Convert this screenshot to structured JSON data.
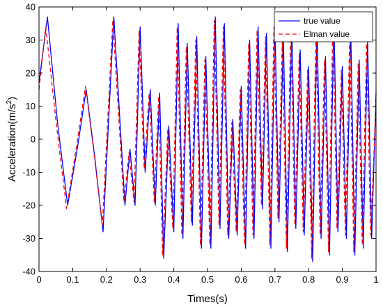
{
  "chart_data": {
    "type": "line",
    "title": "",
    "xlabel": "Times(s)",
    "ylabel_main": "Acceleration(m/s",
    "ylabel_sup": "2",
    "ylabel_close": ")",
    "xlim": [
      0,
      1
    ],
    "ylim": [
      -40,
      40
    ],
    "xticks": [
      0,
      0.1,
      0.2,
      0.3,
      0.4,
      0.5,
      0.6,
      0.7,
      0.8,
      0.9,
      1
    ],
    "xtick_labels": [
      "0",
      "0.1",
      "0.2",
      "0.3",
      "0.4",
      "0.5",
      "0.6",
      "0.7",
      "0.8",
      "0.9",
      "1"
    ],
    "yticks": [
      -40,
      -30,
      -20,
      -10,
      0,
      10,
      20,
      30,
      40
    ],
    "ytick_labels": [
      "-40",
      "-30",
      "-20",
      "-10",
      "0",
      "10",
      "20",
      "30",
      "40"
    ],
    "grid": false,
    "legend_position": "top-right",
    "series": [
      {
        "name": "true value",
        "color": "#0000ff",
        "style": "solid",
        "x": [
          0,
          0.025,
          0.055,
          0.085,
          0.115,
          0.14,
          0.165,
          0.19,
          0.222,
          0.255,
          0.27,
          0.285,
          0.3,
          0.315,
          0.33,
          0.345,
          0.358,
          0.37,
          0.385,
          0.4,
          0.413,
          0.427,
          0.44,
          0.455,
          0.468,
          0.482,
          0.495,
          0.51,
          0.523,
          0.537,
          0.55,
          0.563,
          0.575,
          0.588,
          0.6,
          0.613,
          0.625,
          0.638,
          0.65,
          0.663,
          0.675,
          0.688,
          0.7,
          0.712,
          0.725,
          0.737,
          0.75,
          0.762,
          0.775,
          0.787,
          0.8,
          0.812,
          0.825,
          0.837,
          0.85,
          0.862,
          0.875,
          0.887,
          0.9,
          0.912,
          0.925,
          0.937,
          0.95,
          0.962,
          0.975,
          0.987,
          1
        ],
        "y": [
          17,
          37,
          5,
          -20,
          -2,
          15,
          -5,
          -28,
          37,
          -20,
          -3,
          -20,
          34,
          -10,
          15,
          -20,
          14,
          -36,
          4,
          -28,
          35,
          -30,
          29,
          -26,
          31,
          -33,
          25,
          -33,
          37,
          -27,
          35,
          -30,
          6,
          -29,
          16,
          -33,
          30,
          -30,
          34,
          -21,
          32,
          -33,
          35,
          -25,
          32,
          -34,
          35,
          -27,
          27,
          -29,
          22,
          -37,
          35,
          -30,
          25,
          -35,
          37,
          -28,
          22,
          -30,
          33,
          -35,
          24,
          -33,
          30,
          -30,
          14
        ]
      },
      {
        "name": "Elman value",
        "color": "#ff0000",
        "style": "dashed",
        "x": [
          0,
          0.02,
          0.052,
          0.082,
          0.113,
          0.138,
          0.163,
          0.188,
          0.219,
          0.252,
          0.267,
          0.282,
          0.297,
          0.312,
          0.327,
          0.342,
          0.355,
          0.367,
          0.382,
          0.397,
          0.41,
          0.424,
          0.437,
          0.452,
          0.465,
          0.479,
          0.492,
          0.507,
          0.52,
          0.534,
          0.547,
          0.56,
          0.572,
          0.585,
          0.597,
          0.61,
          0.622,
          0.635,
          0.647,
          0.66,
          0.672,
          0.685,
          0.697,
          0.709,
          0.722,
          0.734,
          0.747,
          0.759,
          0.772,
          0.784,
          0.797,
          0.809,
          0.822,
          0.834,
          0.847,
          0.859,
          0.872,
          0.884,
          0.897,
          0.909,
          0.922,
          0.934,
          0.947,
          0.959,
          0.972,
          0.984,
          1
        ],
        "y": [
          15,
          34,
          4,
          -21,
          -1,
          16,
          -4,
          -26,
          36,
          -19,
          -4,
          -19,
          33,
          -9,
          14,
          -19,
          13,
          -35,
          3,
          -27,
          34,
          -29,
          28,
          -25,
          30,
          -32,
          24,
          -32,
          36,
          -26,
          34,
          -29,
          5,
          -28,
          15,
          -32,
          29,
          -29,
          33,
          -20,
          31,
          -32,
          34,
          -24,
          31,
          -33,
          34,
          -26,
          26,
          -28,
          21,
          -36,
          34,
          -29,
          24,
          -34,
          36,
          -27,
          21,
          -29,
          32,
          -34,
          23,
          -32,
          29,
          -29,
          12
        ]
      }
    ]
  }
}
